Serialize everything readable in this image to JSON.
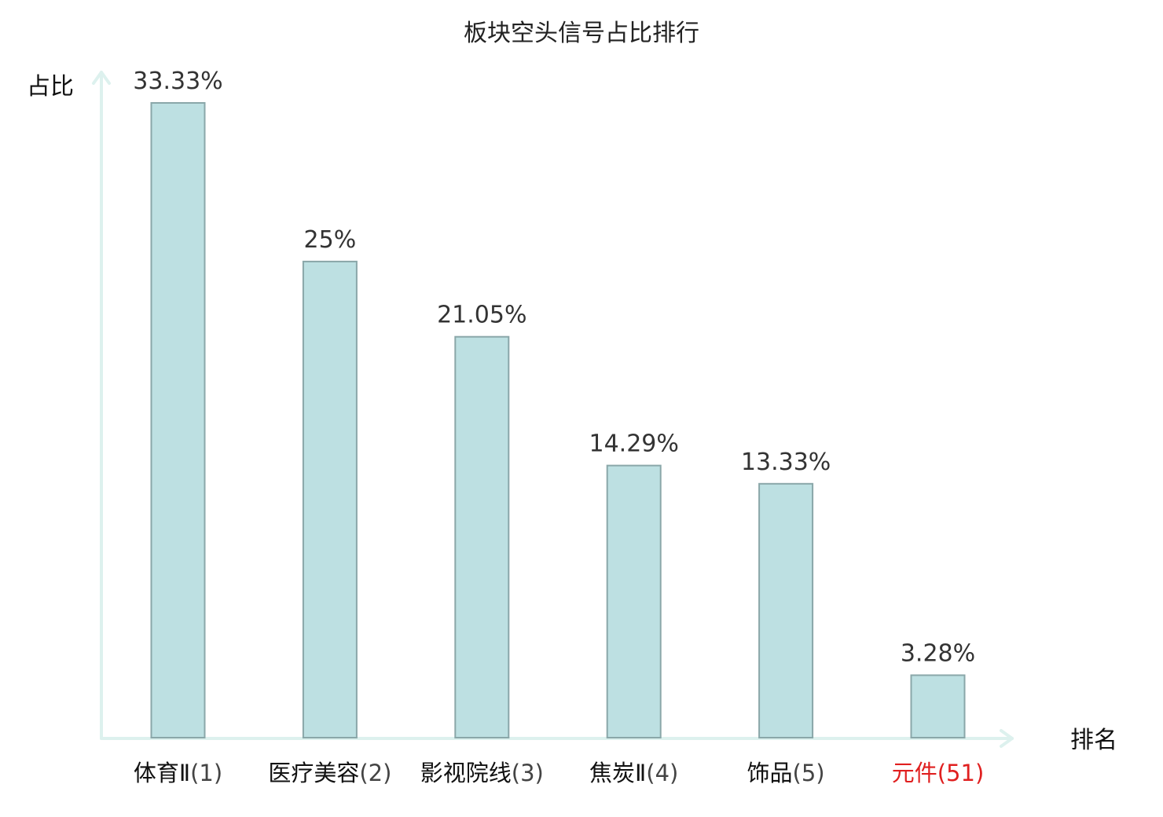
{
  "chart_data": {
    "type": "bar",
    "title": "板块空头信号占比排行",
    "ylabel": "占比",
    "xlabel": "排名",
    "categories": [
      {
        "name": "体育Ⅱ",
        "rank": "(1)",
        "highlight": false
      },
      {
        "name": "医疗美容",
        "rank": "(2)",
        "highlight": false
      },
      {
        "name": "影视院线",
        "rank": "(3)",
        "highlight": false
      },
      {
        "name": "焦炭Ⅱ",
        "rank": "(4)",
        "highlight": false
      },
      {
        "name": "饰品",
        "rank": "(5)",
        "highlight": false
      },
      {
        "name": "元件",
        "rank": "(51)",
        "highlight": true
      }
    ],
    "values": [
      33.33,
      25,
      21.05,
      14.29,
      13.33,
      3.28
    ],
    "value_labels": [
      "33.33%",
      "25%",
      "21.05%",
      "14.29%",
      "13.33%",
      "3.28%"
    ],
    "ylim": [
      0,
      35
    ],
    "grid": false,
    "colors": {
      "bar_fill": "#bde0e2",
      "bar_stroke": "#8aa7a9",
      "axis": "#ddf1ee",
      "label_text": "#111111",
      "rank_text": "#444444",
      "highlight": "#e02020"
    }
  }
}
